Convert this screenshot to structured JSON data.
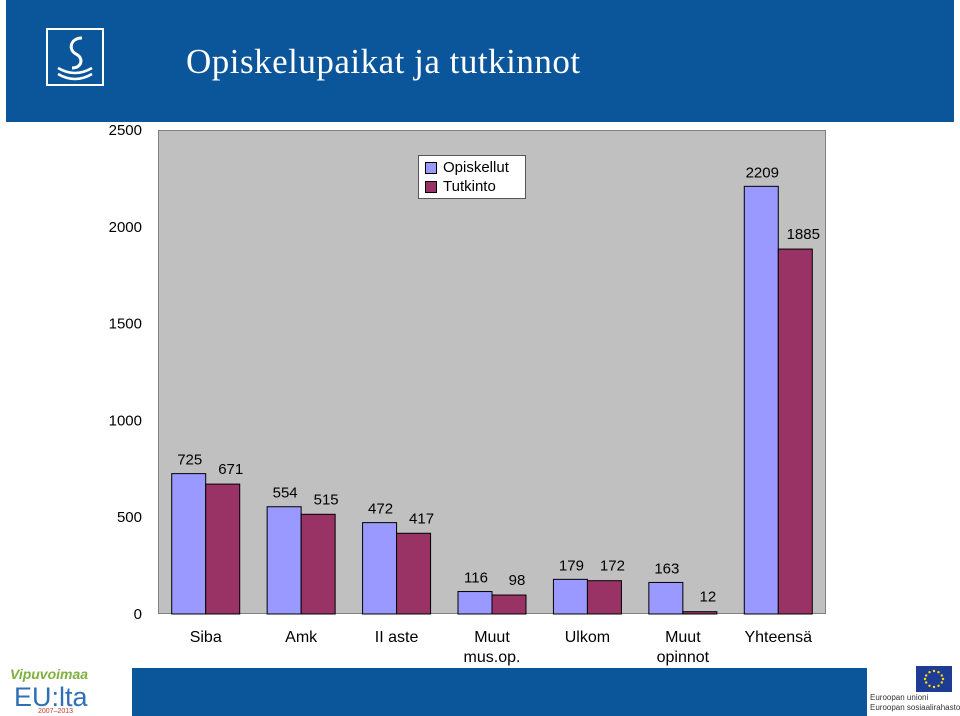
{
  "slide": {
    "title": "Opiskelupaikat ja  tutkinnot"
  },
  "footer": {
    "left_logo": {
      "line1": "Vipuvoimaa",
      "line2": "EU:lta",
      "line3": "2007–2013"
    },
    "right_logo": {
      "line1": "Euroopan unioni",
      "line2": "Euroopan sosiaalirahasto"
    }
  },
  "colors": {
    "header": "#0b559b",
    "opiskellut": "#9999ff",
    "tutkinto": "#993366",
    "plot_bg": "#c0c0c0"
  },
  "chart_data": {
    "type": "bar",
    "title": "",
    "xlabel": "",
    "ylabel": "",
    "ylim": [
      0,
      2500
    ],
    "yticks": [
      0,
      500,
      1000,
      1500,
      2000,
      2500
    ],
    "ytick_labels": [
      "0",
      "500",
      "1000",
      "1500",
      "2000",
      "2500"
    ],
    "categories": [
      [
        "Siba"
      ],
      [
        "Amk"
      ],
      [
        "II aste"
      ],
      [
        "Muut",
        "mus.op."
      ],
      [
        "Ulkom"
      ],
      [
        "Muut",
        "opinnot"
      ],
      [
        "Yhteensä"
      ]
    ],
    "series": [
      {
        "name": "Opiskellut",
        "color": "#9999ff",
        "values": [
          725,
          554,
          472,
          116,
          179,
          163,
          2209
        ]
      },
      {
        "name": "Tutkinto",
        "color": "#993366",
        "values": [
          671,
          515,
          417,
          98,
          172,
          12,
          1885
        ]
      }
    ],
    "legend_position": "top-center",
    "grid": false
  }
}
